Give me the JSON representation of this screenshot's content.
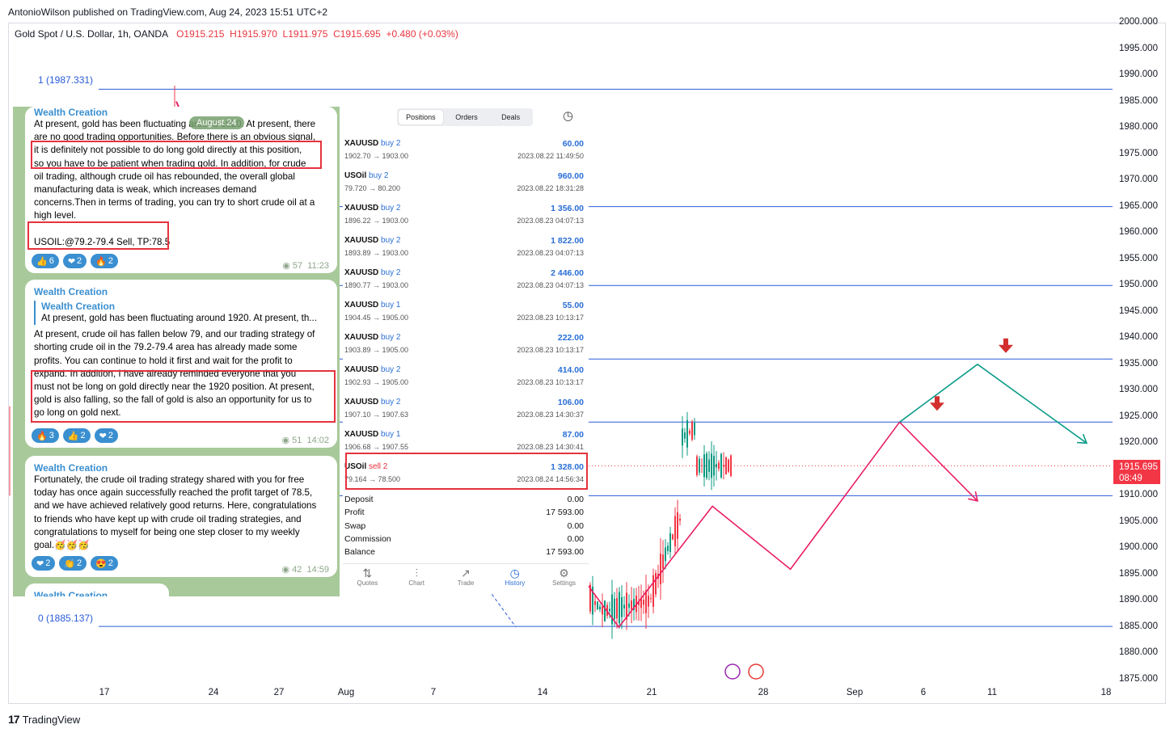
{
  "header": {
    "published": "AntonioWilson published on TradingView.com, Aug 24, 2023 15:51 UTC+2",
    "symbol": "Gold Spot / U.S. Dollar, 1h, OANDA",
    "open": "O1915.215",
    "high": "H1915.970",
    "low": "L1911.975",
    "close": "C1915.695",
    "change": "+0.480 (+0.03%)"
  },
  "price_badge": {
    "price": "1915.695",
    "countdown": "08:49"
  },
  "fib_labels": {
    "top": "1 (1987.331)",
    "bottom": "0 (1885.137)"
  },
  "footer": {
    "logo_mark": "17",
    "logo_text": "TradingView"
  },
  "colors": {
    "up": "#089981",
    "down": "#f23645",
    "fib": "#2a5bd7",
    "projection_red": "#e91e63",
    "projection_teal": "#0f9d8a"
  },
  "chart_data": {
    "type": "line",
    "title": "Gold Spot / U.S. Dollar, 1h, OANDA",
    "y_ticks": [
      "2000.000",
      "1995.000",
      "1990.000",
      "1985.000",
      "1980.000",
      "1975.000",
      "1970.000",
      "1965.000",
      "1960.000",
      "1955.000",
      "1950.000",
      "1945.000",
      "1940.000",
      "1935.000",
      "1930.000",
      "1925.000",
      "1920.000",
      "1915.000",
      "1910.000",
      "1905.000",
      "1900.000",
      "1895.000",
      "1890.000",
      "1885.000",
      "1880.000",
      "1875.000"
    ],
    "x_ticks": [
      "17",
      "24",
      "27",
      "Aug",
      "7",
      "14",
      "21",
      "28",
      "Sep",
      "6",
      "11",
      "18"
    ],
    "ylim": [
      1875,
      2000
    ],
    "horizontal_levels": [
      1987.331,
      1965.0,
      1950.0,
      1936.0,
      1924.0,
      1910.0,
      1885.137
    ],
    "visible_price_path": [
      {
        "x": "Aug 16",
        "y": 1903
      },
      {
        "x": "Aug 17",
        "y": 1891
      },
      {
        "x": "Aug 18",
        "y": 1888
      },
      {
        "x": "Aug 21",
        "y": 1890
      },
      {
        "x": "Aug 22",
        "y": 1899
      },
      {
        "x": "Aug 23",
        "y": 1906
      },
      {
        "x": "Aug 23",
        "y": 1921
      },
      {
        "x": "Aug 24",
        "y": 1923
      },
      {
        "x": "Aug 24",
        "y": 1915.7
      }
    ],
    "projections": [
      {
        "name": "",
        "color": "red",
        "points": [
          {
            "x": "Aug 16",
            "y": 1897
          },
          {
            "x": "Aug 19",
            "y": 1885
          },
          {
            "x": "Aug 25",
            "y": 1908
          },
          {
            "x": "Aug 30",
            "y": 1896
          },
          {
            "x": "Sep 6",
            "y": 1924
          },
          {
            "x": "Sep 11",
            "y": 1909
          }
        ]
      },
      {
        "name": "",
        "color": "teal",
        "points": [
          {
            "x": "Sep 6",
            "y": 1924
          },
          {
            "x": "Sep 11",
            "y": 1935
          },
          {
            "x": "Sep 18",
            "y": 1920
          }
        ]
      }
    ],
    "grid": false,
    "legend": "none"
  },
  "telegram": {
    "date_chip": "August 24",
    "messages": [
      {
        "author": "Wealth Creation",
        "lines": [
          "At present, gold has been fluctuating around 1920. At present, there",
          "are no good trading opportunities. Before there is an obvious signal,",
          "it is definitely not possible to do long gold directly at this position,",
          "so you have to be patient when trading gold. In addition, for crude",
          "oil trading, although crude oil has rebounded, the overall global",
          "manufacturing data is weak, which increases demand",
          "concerns.Then in terms of trading, you can try to short crude oil at a",
          "high level.",
          "",
          "USOIL:@79.2-79.4 Sell, TP:78.5"
        ],
        "reactions": [
          {
            "emoji": "👍",
            "count": "6"
          },
          {
            "emoji": "❤",
            "count": "2"
          },
          {
            "emoji": "🔥",
            "count": "2"
          }
        ],
        "views": "57",
        "time": "11:23"
      },
      {
        "author": "Wealth Creation",
        "quote_author": "Wealth Creation",
        "quote_text": "At present, gold has been fluctuating around 1920. At present, th...",
        "lines": [
          "At present, crude oil has fallen below 79, and our trading strategy of",
          "shorting crude oil in the 79.2-79.4 area has already made some",
          "profits. You can continue to hold it first and wait for the profit to",
          "expand. In addition, I have already reminded everyone that you",
          "must not be long on gold directly near the 1920 position. At present,",
          "gold is also falling, so the fall of gold is also an opportunity for us to",
          "go long on gold next."
        ],
        "reactions": [
          {
            "emoji": "🔥",
            "count": "3"
          },
          {
            "emoji": "👍",
            "count": "2"
          },
          {
            "emoji": "❤",
            "count": "2"
          }
        ],
        "views": "51",
        "time": "14:02"
      },
      {
        "author": "Wealth Creation",
        "lines": [
          "Fortunately, the crude oil trading strategy shared with you for free",
          "today has once again successfully reached the profit target of 78.5,",
          "and we have achieved relatively good returns. Here, congratulations",
          "to friends who have kept up with crude oil trading strategies, and",
          "congratulations to myself for being one step closer to my weekly",
          "goal.🥳🥳🥳"
        ],
        "reactions": [
          {
            "emoji": "❤",
            "count": "2"
          },
          {
            "emoji": "👏",
            "count": "2"
          },
          {
            "emoji": "😍",
            "count": "2"
          }
        ],
        "views": "42",
        "time": "14:59"
      },
      {
        "author": "Wealth Creation"
      }
    ]
  },
  "mt5": {
    "tabs": [
      "Positions",
      "Orders",
      "Deals"
    ],
    "active_tab": "Positions",
    "deals": [
      {
        "symbol": "XAUUSD",
        "side": "buy 2",
        "prices": "1902.70 → 1903.00",
        "profit": "60.00",
        "datetime": "2023.08.22 11:49:50"
      },
      {
        "symbol": "USOil",
        "side": "buy 2",
        "prices": "79.720 → 80.200",
        "profit": "960.00",
        "datetime": "2023.08.22 18:31:28"
      },
      {
        "symbol": "XAUUSD",
        "side": "buy 2",
        "prices": "1896.22 → 1903.00",
        "profit": "1 356.00",
        "datetime": "2023.08.23 04:07:13"
      },
      {
        "symbol": "XAUUSD",
        "side": "buy 2",
        "prices": "1893.89 → 1903.00",
        "profit": "1 822.00",
        "datetime": "2023.08.23 04:07:13"
      },
      {
        "symbol": "XAUUSD",
        "side": "buy 2",
        "prices": "1890.77 → 1903.00",
        "profit": "2 446.00",
        "datetime": "2023.08.23 04:07:13"
      },
      {
        "symbol": "XAUUSD",
        "side": "buy 1",
        "prices": "1904.45 → 1905.00",
        "profit": "55.00",
        "datetime": "2023.08.23 10:13:17"
      },
      {
        "symbol": "XAUUSD",
        "side": "buy 2",
        "prices": "1903.89 → 1905.00",
        "profit": "222.00",
        "datetime": "2023.08.23 10:13:17"
      },
      {
        "symbol": "XAUUSD",
        "side": "buy 2",
        "prices": "1902.93 → 1905.00",
        "profit": "414.00",
        "datetime": "2023.08.23 10:13:17"
      },
      {
        "symbol": "XAUUSD",
        "side": "buy 2",
        "prices": "1907.10 → 1907.63",
        "profit": "106.00",
        "datetime": "2023.08.23 14:30:37"
      },
      {
        "symbol": "XAUUSD",
        "side": "buy 1",
        "prices": "1906.68 → 1907.55",
        "profit": "87.00",
        "datetime": "2023.08.23 14:30:41"
      },
      {
        "symbol": "USOil",
        "side": "sell 2",
        "prices": "79.164 → 78.500",
        "profit": "1 328.00",
        "datetime": "2023.08.24 14:56:34"
      }
    ],
    "summary": [
      {
        "label": "Deposit",
        "value": "0.00"
      },
      {
        "label": "Profit",
        "value": "17 593.00"
      },
      {
        "label": "Swap",
        "value": "0.00"
      },
      {
        "label": "Commission",
        "value": "0.00"
      },
      {
        "label": "Balance",
        "value": "17 593.00"
      }
    ],
    "nav": [
      {
        "label": "Quotes",
        "icon": "⇅"
      },
      {
        "label": "Chart",
        "icon": "⫶"
      },
      {
        "label": "Trade",
        "icon": "↗"
      },
      {
        "label": "History",
        "icon": "◷"
      },
      {
        "label": "Settings",
        "icon": "⚙"
      }
    ]
  }
}
